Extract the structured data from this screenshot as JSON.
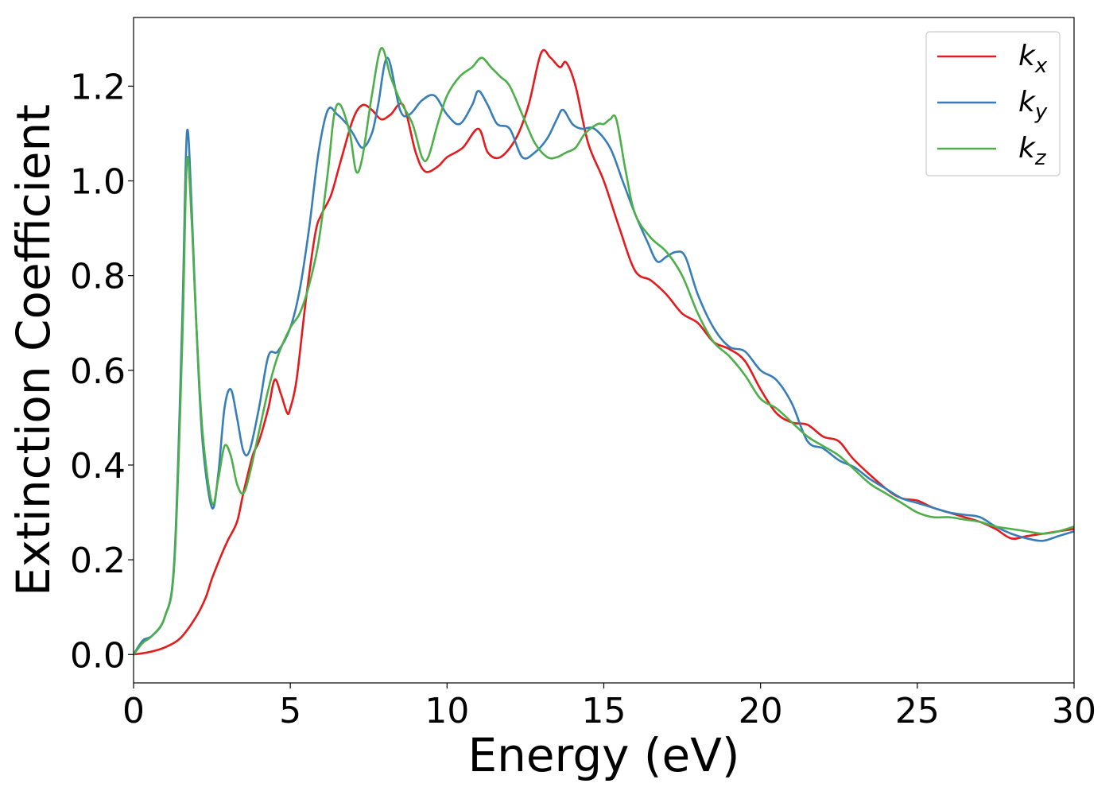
{
  "chart_data": {
    "type": "line",
    "title": "",
    "xlabel": "Energy (eV)",
    "ylabel": "Extinction Coefficient",
    "xlim": [
      0,
      30
    ],
    "ylim": [
      -0.06,
      1.345
    ],
    "xticks": [
      0,
      5,
      10,
      15,
      20,
      25,
      30
    ],
    "xtick_labels": [
      "0",
      "5",
      "10",
      "15",
      "20",
      "25",
      "30"
    ],
    "yticks": [
      0.0,
      0.2,
      0.4,
      0.6,
      0.8,
      1.0,
      1.2
    ],
    "ytick_labels": [
      "0.0",
      "0.2",
      "0.4",
      "0.6",
      "0.8",
      "1.0",
      "1.2"
    ],
    "grid": false,
    "legend_position": "top-right",
    "series": [
      {
        "name": "k_x",
        "label_base": "k",
        "label_sub": "x",
        "color": "#e41a1c",
        "x": [
          0.0,
          0.5,
          1.0,
          1.5,
          2.0,
          2.3,
          2.5,
          2.8,
          3.0,
          3.3,
          3.5,
          3.8,
          4.0,
          4.3,
          4.5,
          4.7,
          4.9,
          5.0,
          5.2,
          5.5,
          5.8,
          6.0,
          6.3,
          6.6,
          7.0,
          7.3,
          7.6,
          7.9,
          8.2,
          8.6,
          9.0,
          9.3,
          9.7,
          10.0,
          10.5,
          11.0,
          11.3,
          11.7,
          12.2,
          12.6,
          13.0,
          13.3,
          13.6,
          13.8,
          14.1,
          14.5,
          15.0,
          15.5,
          16.0,
          16.5,
          17.0,
          17.5,
          18.0,
          18.5,
          19.0,
          19.5,
          20.0,
          20.5,
          21.0,
          21.5,
          22.0,
          22.5,
          23.0,
          24.0,
          24.5,
          25.0,
          25.5,
          26.0,
          26.5,
          27.0,
          27.5,
          28.0,
          28.5,
          29.0,
          29.5,
          30.0
        ],
        "y": [
          0.0,
          0.005,
          0.015,
          0.035,
          0.08,
          0.12,
          0.16,
          0.21,
          0.24,
          0.28,
          0.34,
          0.42,
          0.45,
          0.52,
          0.58,
          0.55,
          0.51,
          0.52,
          0.58,
          0.75,
          0.89,
          0.93,
          0.97,
          1.04,
          1.13,
          1.16,
          1.15,
          1.13,
          1.14,
          1.16,
          1.06,
          1.02,
          1.03,
          1.05,
          1.07,
          1.11,
          1.06,
          1.05,
          1.09,
          1.16,
          1.27,
          1.26,
          1.24,
          1.25,
          1.2,
          1.08,
          1.0,
          0.9,
          0.81,
          0.79,
          0.76,
          0.72,
          0.7,
          0.66,
          0.645,
          0.62,
          0.56,
          0.51,
          0.49,
          0.485,
          0.46,
          0.45,
          0.41,
          0.35,
          0.33,
          0.325,
          0.31,
          0.3,
          0.29,
          0.28,
          0.265,
          0.245,
          0.25,
          0.255,
          0.26,
          0.265
        ]
      },
      {
        "name": "k_y",
        "label_base": "k",
        "label_sub": "y",
        "color": "#377eb8",
        "x": [
          0.0,
          0.3,
          0.6,
          1.0,
          1.3,
          1.55,
          1.7,
          1.85,
          2.0,
          2.2,
          2.5,
          2.7,
          2.9,
          3.1,
          3.3,
          3.5,
          3.7,
          4.0,
          4.3,
          4.6,
          5.0,
          5.3,
          5.6,
          5.9,
          6.2,
          6.5,
          6.8,
          7.0,
          7.3,
          7.6,
          7.8,
          8.1,
          8.5,
          8.8,
          9.2,
          9.6,
          10.0,
          10.4,
          10.8,
          11.0,
          11.3,
          11.6,
          12.0,
          12.4,
          12.8,
          13.2,
          13.5,
          13.7,
          14.0,
          14.3,
          14.7,
          15.2,
          15.6,
          16.0,
          16.4,
          16.7,
          17.0,
          17.3,
          17.6,
          18.0,
          18.5,
          19.0,
          19.5,
          20.0,
          20.5,
          21.0,
          21.5,
          22.0,
          22.5,
          23.0,
          23.5,
          24.0,
          24.5,
          25.0,
          25.5,
          26.0,
          26.5,
          27.0,
          27.5,
          28.0,
          28.5,
          29.0,
          29.5,
          30.0
        ],
        "y": [
          0.0,
          0.03,
          0.04,
          0.08,
          0.2,
          0.7,
          1.1,
          0.95,
          0.7,
          0.45,
          0.31,
          0.38,
          0.52,
          0.56,
          0.5,
          0.43,
          0.43,
          0.52,
          0.63,
          0.64,
          0.69,
          0.77,
          0.9,
          1.06,
          1.15,
          1.14,
          1.12,
          1.1,
          1.07,
          1.1,
          1.16,
          1.26,
          1.15,
          1.14,
          1.17,
          1.18,
          1.14,
          1.12,
          1.16,
          1.19,
          1.16,
          1.12,
          1.11,
          1.05,
          1.06,
          1.09,
          1.13,
          1.15,
          1.12,
          1.11,
          1.11,
          1.07,
          1.0,
          0.93,
          0.87,
          0.83,
          0.84,
          0.85,
          0.84,
          0.76,
          0.69,
          0.65,
          0.64,
          0.6,
          0.58,
          0.53,
          0.45,
          0.435,
          0.41,
          0.395,
          0.37,
          0.35,
          0.33,
          0.32,
          0.31,
          0.3,
          0.295,
          0.29,
          0.27,
          0.255,
          0.245,
          0.24,
          0.25,
          0.26
        ]
      },
      {
        "name": "k_z",
        "label_base": "k",
        "label_sub": "z",
        "color": "#4daf4a",
        "x": [
          0.0,
          0.3,
          0.6,
          1.0,
          1.3,
          1.55,
          1.7,
          1.85,
          2.0,
          2.2,
          2.5,
          2.7,
          2.9,
          3.1,
          3.3,
          3.5,
          3.7,
          4.0,
          4.3,
          4.6,
          5.0,
          5.3,
          5.6,
          5.9,
          6.2,
          6.4,
          6.6,
          6.9,
          7.1,
          7.3,
          7.6,
          7.9,
          8.2,
          8.5,
          8.9,
          9.2,
          9.4,
          9.7,
          10.0,
          10.4,
          10.8,
          11.1,
          11.4,
          11.7,
          12.0,
          12.4,
          12.8,
          13.2,
          13.5,
          13.8,
          14.1,
          14.4,
          14.8,
          15.0,
          15.2,
          15.4,
          15.7,
          16.0,
          16.5,
          17.0,
          17.5,
          18.0,
          18.5,
          19.0,
          19.5,
          20.0,
          20.5,
          21.0,
          21.5,
          22.0,
          22.5,
          23.0,
          23.5,
          24.0,
          24.5,
          25.0,
          25.5,
          26.0,
          26.5,
          27.0,
          27.5,
          28.0,
          28.5,
          29.0,
          29.5,
          30.0
        ],
        "y": [
          0.0,
          0.025,
          0.04,
          0.08,
          0.19,
          0.65,
          1.04,
          0.92,
          0.7,
          0.47,
          0.32,
          0.37,
          0.44,
          0.42,
          0.36,
          0.34,
          0.38,
          0.47,
          0.56,
          0.63,
          0.69,
          0.72,
          0.78,
          0.87,
          1.02,
          1.14,
          1.16,
          1.1,
          1.02,
          1.05,
          1.18,
          1.28,
          1.22,
          1.17,
          1.12,
          1.05,
          1.05,
          1.12,
          1.18,
          1.22,
          1.24,
          1.26,
          1.24,
          1.22,
          1.2,
          1.14,
          1.08,
          1.05,
          1.05,
          1.06,
          1.07,
          1.1,
          1.12,
          1.12,
          1.13,
          1.13,
          1.02,
          0.93,
          0.88,
          0.85,
          0.8,
          0.72,
          0.66,
          0.63,
          0.59,
          0.54,
          0.52,
          0.49,
          0.46,
          0.44,
          0.42,
          0.39,
          0.36,
          0.34,
          0.32,
          0.3,
          0.29,
          0.29,
          0.285,
          0.28,
          0.27,
          0.265,
          0.26,
          0.255,
          0.26,
          0.27
        ]
      }
    ]
  }
}
